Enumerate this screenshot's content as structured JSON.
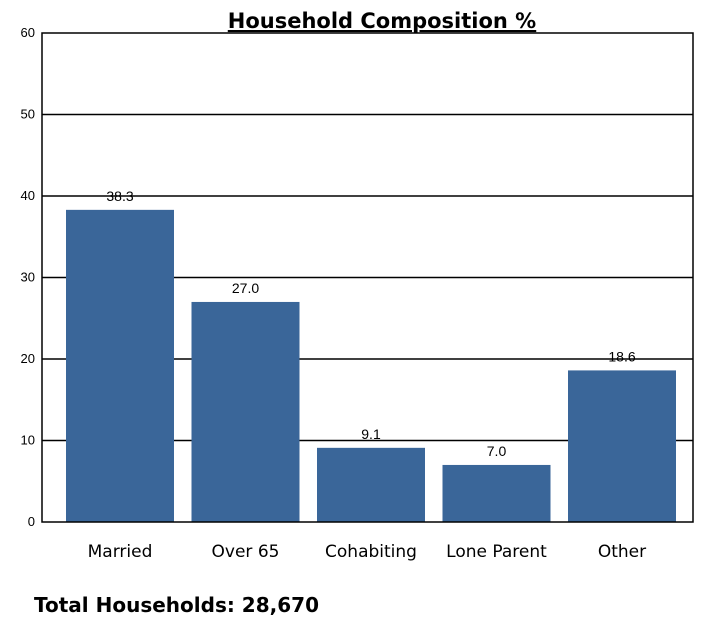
{
  "chart_data": {
    "type": "bar",
    "title": "Household Composition %",
    "categories": [
      "Married",
      "Over 65",
      "Cohabiting",
      "Lone Parent",
      "Other"
    ],
    "values": [
      38.3,
      27.0,
      9.1,
      7.0,
      18.6
    ],
    "value_labels": [
      "38.3",
      "27.0",
      "9.1",
      "7.0",
      "18.6"
    ],
    "xlabel": "",
    "ylabel": "",
    "ylim": [
      0,
      60
    ],
    "yticks": [
      "0",
      "10",
      "20",
      "30",
      "40",
      "50",
      "60"
    ],
    "grid": true,
    "legend": "none",
    "bar_color": "#3a6699"
  },
  "footer": {
    "total_text": "Total Households: 28,670"
  }
}
